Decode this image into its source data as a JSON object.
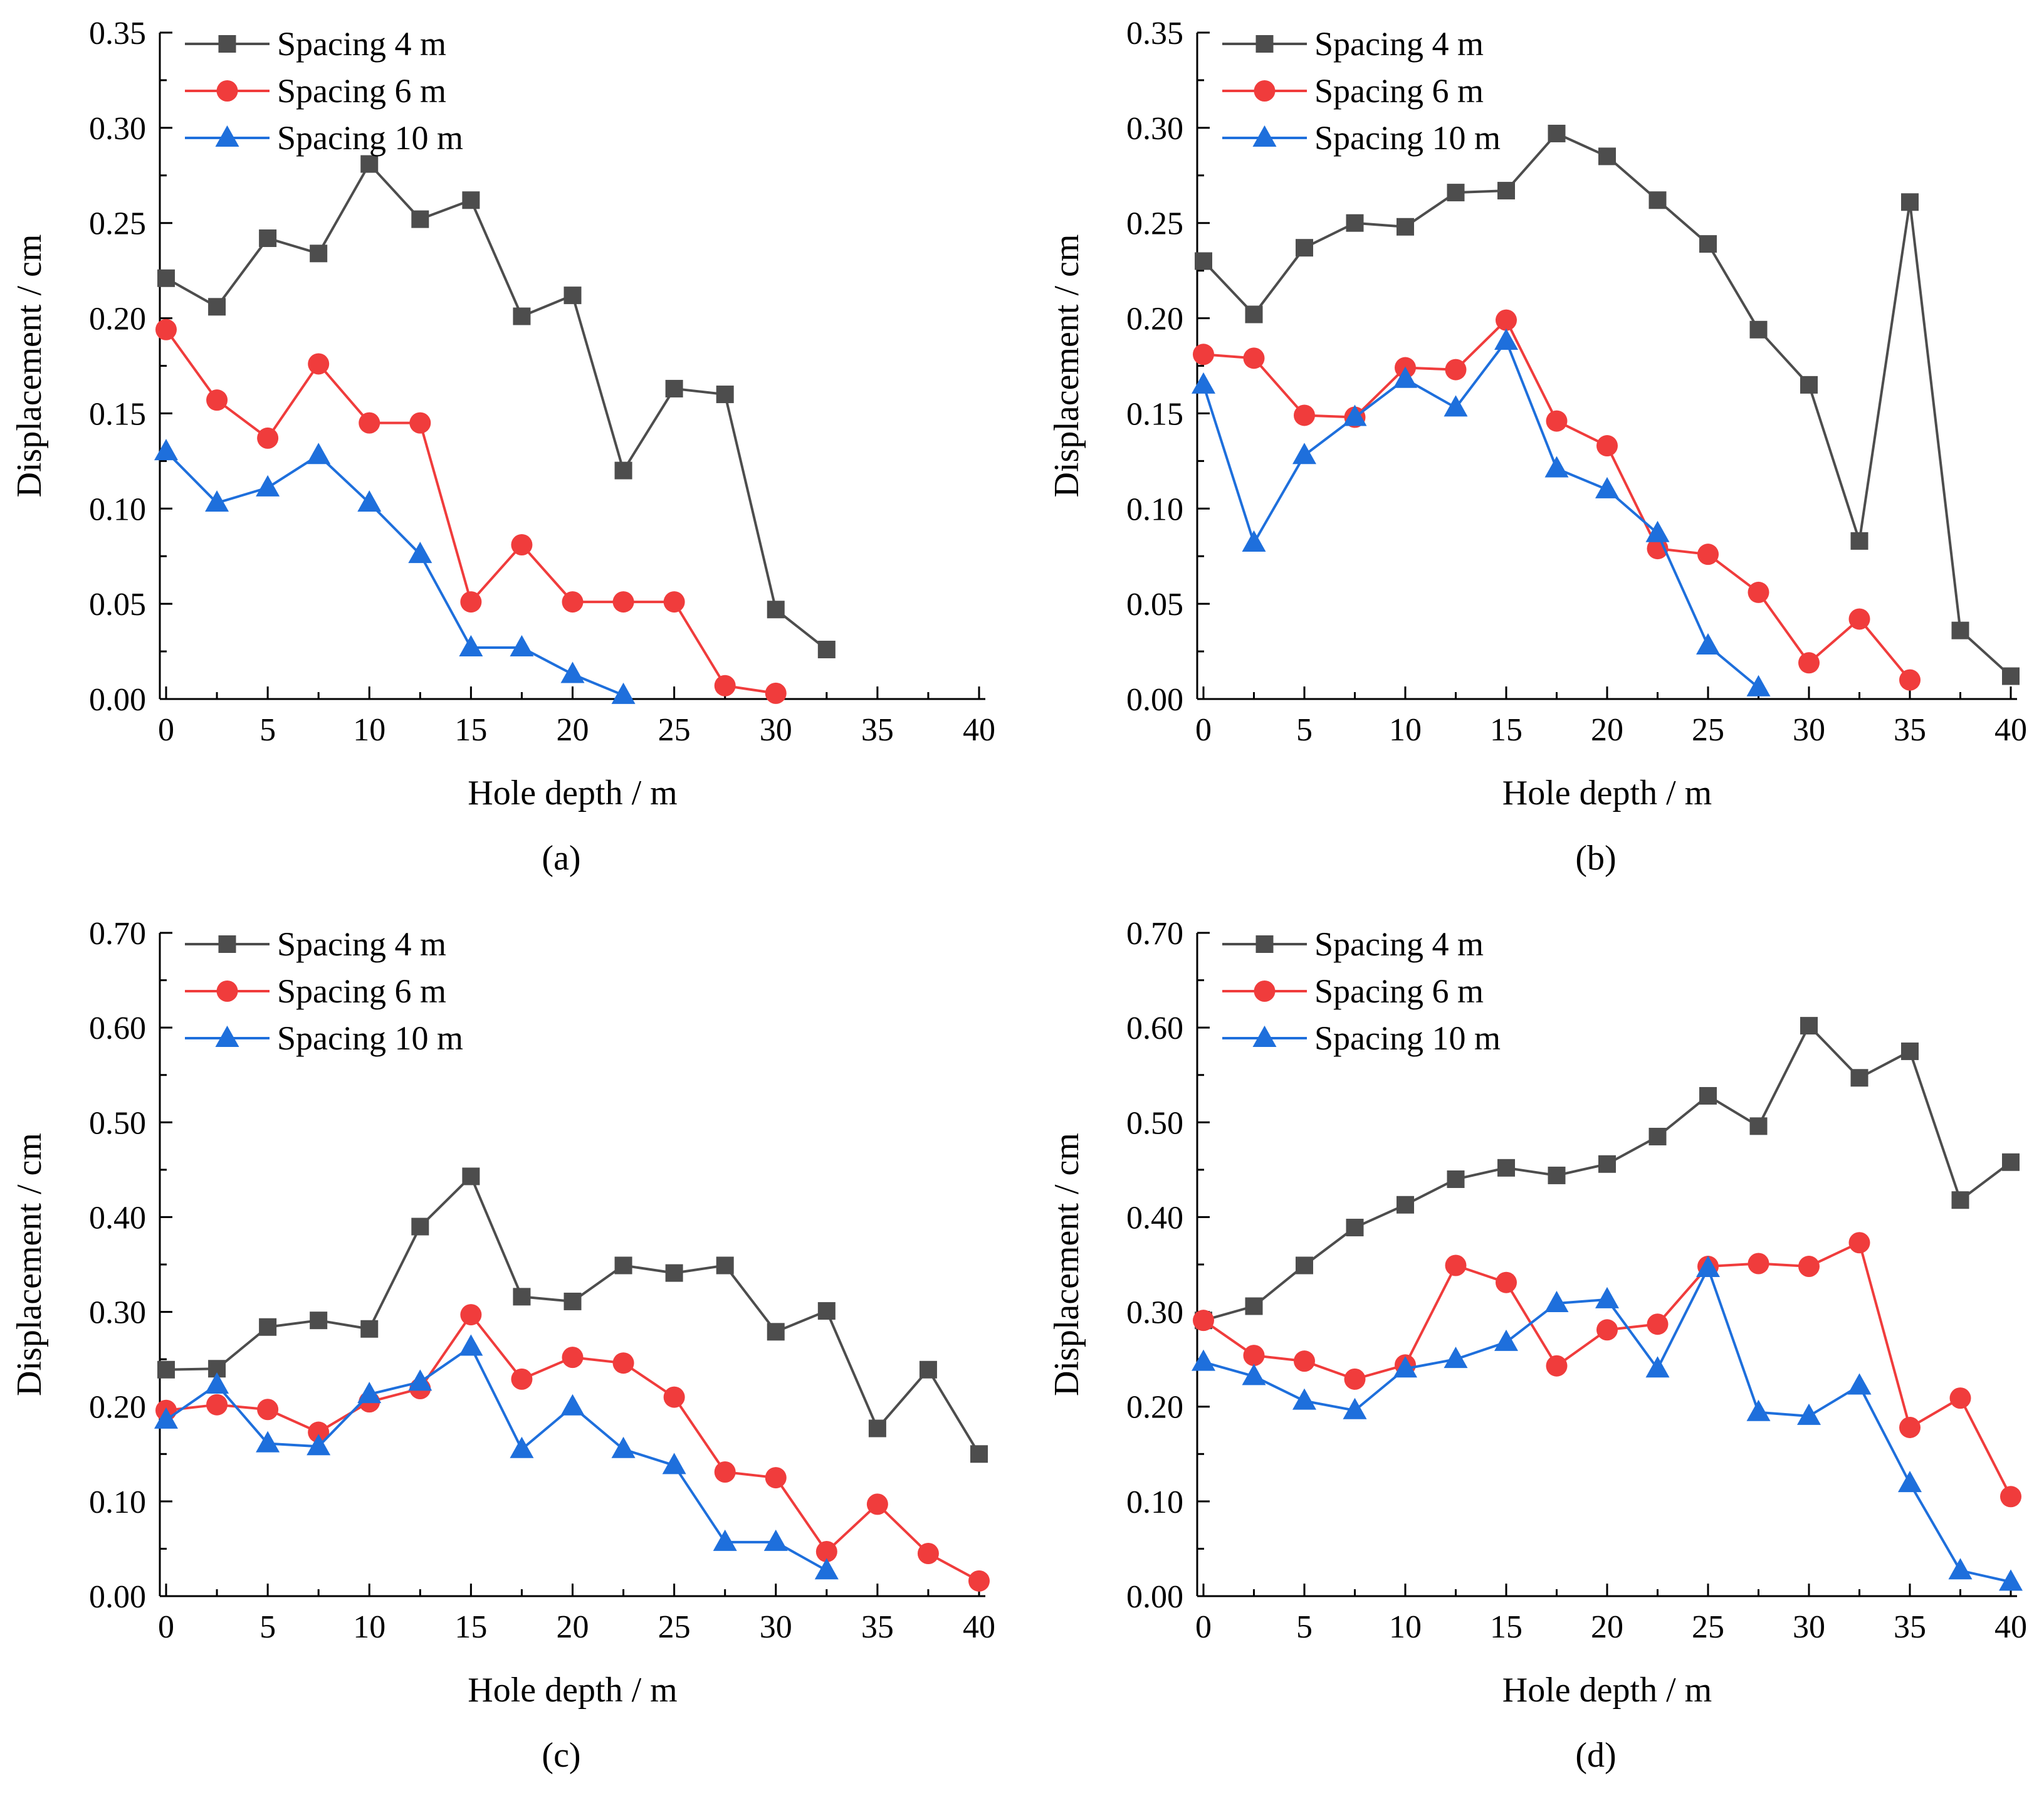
{
  "colors": {
    "spacing4": "#4d4d4d",
    "spacing6": "#f03c3c",
    "spacing10": "#1e6fdc"
  },
  "chart_data": [
    {
      "id": "a",
      "type": "line",
      "panel_label": "(a)",
      "xlabel": "Hole depth / m",
      "ylabel": "Displacement / cm",
      "xlim": [
        0,
        40
      ],
      "ylim": [
        0,
        0.35
      ],
      "xticks": [
        "0",
        "5",
        "10",
        "15",
        "20",
        "25",
        "30",
        "35",
        "40"
      ],
      "yticks": [
        "0.00",
        "0.05",
        "0.10",
        "0.15",
        "0.20",
        "0.25",
        "0.30",
        "0.35"
      ],
      "legend_position": "top-left",
      "series": [
        {
          "name": "Spacing 4 m",
          "marker": "square",
          "color_key": "spacing4",
          "x": [
            0,
            2.5,
            5,
            7.5,
            10,
            12.5,
            15,
            17.5,
            20,
            22.5,
            25,
            27.5,
            30,
            32.5
          ],
          "y": [
            0.221,
            0.206,
            0.242,
            0.234,
            0.281,
            0.252,
            0.262,
            0.201,
            0.212,
            0.12,
            0.163,
            0.16,
            0.047,
            0.026
          ]
        },
        {
          "name": "Spacing 6 m",
          "marker": "circle",
          "color_key": "spacing6",
          "x": [
            0,
            2.5,
            5,
            7.5,
            10,
            12.5,
            15,
            17.5,
            20,
            22.5,
            25,
            27.5,
            30
          ],
          "y": [
            0.194,
            0.157,
            0.137,
            0.176,
            0.145,
            0.145,
            0.051,
            0.081,
            0.051,
            0.051,
            0.051,
            0.007,
            0.003
          ]
        },
        {
          "name": "Spacing 10 m",
          "marker": "triangle",
          "color_key": "spacing10",
          "x": [
            0,
            2.5,
            5,
            7.5,
            10,
            12.5,
            15,
            17.5,
            20,
            22.5
          ],
          "y": [
            0.13,
            0.103,
            0.111,
            0.128,
            0.103,
            0.076,
            0.027,
            0.027,
            0.013,
            0.002
          ]
        }
      ]
    },
    {
      "id": "b",
      "type": "line",
      "panel_label": "(b)",
      "xlabel": "Hole depth / m",
      "ylabel": "Displacement / cm",
      "xlim": [
        0,
        40
      ],
      "ylim": [
        0,
        0.35
      ],
      "xticks": [
        "0",
        "5",
        "10",
        "15",
        "20",
        "25",
        "30",
        "35",
        "40"
      ],
      "yticks": [
        "0.00",
        "0.05",
        "0.10",
        "0.15",
        "0.20",
        "0.25",
        "0.30",
        "0.35"
      ],
      "legend_position": "top-left",
      "series": [
        {
          "name": "Spacing 4 m",
          "marker": "square",
          "color_key": "spacing4",
          "x": [
            0,
            2.5,
            5,
            7.5,
            10,
            12.5,
            15,
            17.5,
            20,
            22.5,
            25,
            27.5,
            30,
            32.5,
            35,
            37.5,
            40
          ],
          "y": [
            0.23,
            0.202,
            0.237,
            0.25,
            0.248,
            0.266,
            0.267,
            0.297,
            0.285,
            0.262,
            0.239,
            0.194,
            0.165,
            0.083,
            0.261,
            0.036,
            0.012
          ]
        },
        {
          "name": "Spacing 6 m",
          "marker": "circle",
          "color_key": "spacing6",
          "x": [
            0,
            2.5,
            5,
            7.5,
            10,
            12.5,
            15,
            17.5,
            20,
            22.5,
            25,
            27.5,
            30,
            32.5,
            35
          ],
          "y": [
            0.181,
            0.179,
            0.149,
            0.148,
            0.174,
            0.173,
            0.199,
            0.146,
            0.133,
            0.079,
            0.076,
            0.056,
            0.019,
            0.042,
            0.01
          ]
        },
        {
          "name": "Spacing 10 m",
          "marker": "triangle",
          "color_key": "spacing10",
          "x": [
            0,
            2.5,
            5,
            7.5,
            10,
            12.5,
            15,
            17.5,
            20,
            22.5,
            25,
            27.5
          ],
          "y": [
            0.165,
            0.082,
            0.128,
            0.148,
            0.168,
            0.153,
            0.188,
            0.121,
            0.11,
            0.087,
            0.028,
            0.006
          ]
        }
      ]
    },
    {
      "id": "c",
      "type": "line",
      "panel_label": "(c)",
      "xlabel": "Hole depth / m",
      "ylabel": "Displacement / cm",
      "xlim": [
        0,
        40
      ],
      "ylim": [
        0,
        0.7
      ],
      "xticks": [
        "0",
        "5",
        "10",
        "15",
        "20",
        "25",
        "30",
        "35",
        "40"
      ],
      "yticks": [
        "0.00",
        "0.10",
        "0.20",
        "0.30",
        "0.40",
        "0.50",
        "0.60",
        "0.70"
      ],
      "legend_position": "top-left",
      "series": [
        {
          "name": "Spacing 4 m",
          "marker": "square",
          "color_key": "spacing4",
          "x": [
            0,
            2.5,
            5,
            7.5,
            10,
            12.5,
            15,
            17.5,
            20,
            22.5,
            25,
            27.5,
            30,
            32.5,
            35,
            37.5,
            40
          ],
          "y": [
            0.239,
            0.24,
            0.284,
            0.291,
            0.282,
            0.39,
            0.443,
            0.316,
            0.311,
            0.349,
            0.341,
            0.349,
            0.279,
            0.301,
            0.177,
            0.239,
            0.15
          ]
        },
        {
          "name": "Spacing 6 m",
          "marker": "circle",
          "color_key": "spacing6",
          "x": [
            0,
            2.5,
            5,
            7.5,
            10,
            12.5,
            15,
            17.5,
            20,
            22.5,
            25,
            27.5,
            30,
            32.5,
            35,
            37.5,
            40
          ],
          "y": [
            0.196,
            0.202,
            0.197,
            0.173,
            0.205,
            0.219,
            0.297,
            0.229,
            0.252,
            0.246,
            0.21,
            0.131,
            0.125,
            0.047,
            0.097,
            0.045,
            0.016
          ]
        },
        {
          "name": "Spacing 10 m",
          "marker": "triangle",
          "color_key": "spacing10",
          "x": [
            0,
            2.5,
            5,
            7.5,
            10,
            12.5,
            15,
            17.5,
            20,
            22.5,
            25,
            27.5,
            30,
            32.5
          ],
          "y": [
            0.186,
            0.223,
            0.161,
            0.158,
            0.213,
            0.226,
            0.263,
            0.155,
            0.2,
            0.155,
            0.138,
            0.057,
            0.057,
            0.027
          ]
        }
      ]
    },
    {
      "id": "d",
      "type": "line",
      "panel_label": "(d)",
      "xlabel": "Hole depth / m",
      "ylabel": "Displacement / cm",
      "xlim": [
        0,
        40
      ],
      "ylim": [
        0,
        0.7
      ],
      "xticks": [
        "0",
        "5",
        "10",
        "15",
        "20",
        "25",
        "30",
        "35",
        "40"
      ],
      "yticks": [
        "0.00",
        "0.10",
        "0.20",
        "0.30",
        "0.40",
        "0.50",
        "0.60",
        "0.70"
      ],
      "legend_position": "top-left",
      "series": [
        {
          "name": "Spacing 4 m",
          "marker": "square",
          "color_key": "spacing4",
          "x": [
            0,
            2.5,
            5,
            7.5,
            10,
            12.5,
            15,
            17.5,
            20,
            22.5,
            25,
            27.5,
            30,
            32.5,
            35,
            37.5,
            40
          ],
          "y": [
            0.291,
            0.306,
            0.349,
            0.389,
            0.413,
            0.44,
            0.452,
            0.444,
            0.456,
            0.485,
            0.528,
            0.496,
            0.602,
            0.547,
            0.575,
            0.418,
            0.458
          ]
        },
        {
          "name": "Spacing 6 m",
          "marker": "circle",
          "color_key": "spacing6",
          "x": [
            0,
            2.5,
            5,
            7.5,
            10,
            12.5,
            15,
            17.5,
            20,
            22.5,
            25,
            27.5,
            30,
            32.5,
            35,
            37.5,
            40
          ],
          "y": [
            0.291,
            0.254,
            0.248,
            0.229,
            0.244,
            0.349,
            0.331,
            0.243,
            0.281,
            0.287,
            0.348,
            0.351,
            0.348,
            0.373,
            0.178,
            0.209,
            0.105
          ]
        },
        {
          "name": "Spacing 10 m",
          "marker": "triangle",
          "color_key": "spacing10",
          "x": [
            0,
            2.5,
            5,
            7.5,
            10,
            12.5,
            15,
            17.5,
            20,
            22.5,
            25,
            27.5,
            30,
            32.5,
            35,
            37.5,
            40
          ],
          "y": [
            0.247,
            0.232,
            0.206,
            0.196,
            0.24,
            0.25,
            0.268,
            0.309,
            0.313,
            0.24,
            0.346,
            0.194,
            0.19,
            0.222,
            0.119,
            0.027,
            0.015
          ]
        }
      ]
    }
  ]
}
